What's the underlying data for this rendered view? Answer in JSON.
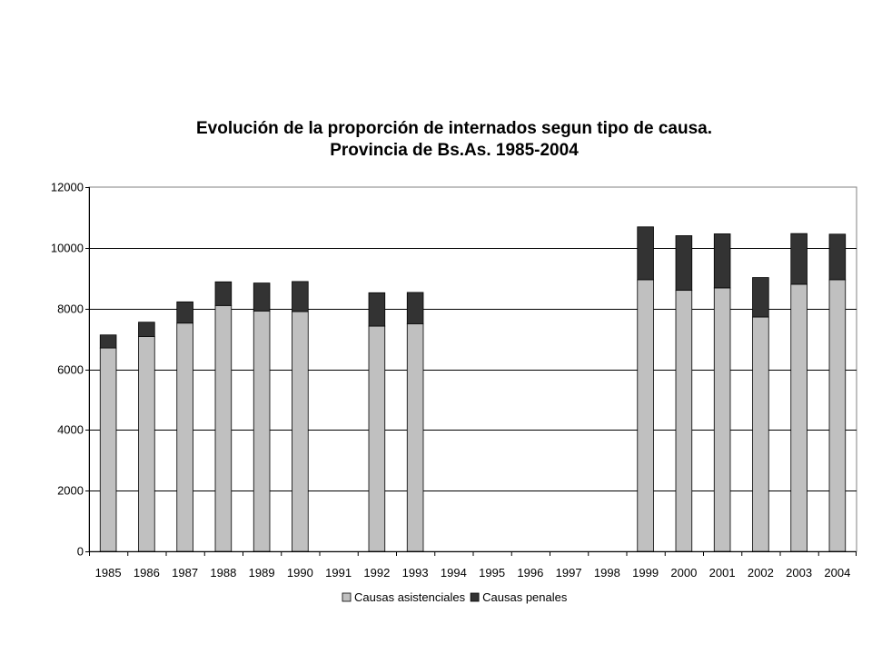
{
  "chart_data": {
    "type": "bar",
    "stacked": true,
    "title": "Evolución de la proporción de internados segun tipo de causa.",
    "subtitle": "Provincia de Bs.As. 1985-2004",
    "xlabel": "",
    "ylabel": "",
    "ylim": [
      0,
      12000
    ],
    "yticks": [
      0,
      2000,
      4000,
      6000,
      8000,
      10000,
      12000
    ],
    "grid": true,
    "legend_position": "bottom",
    "categories": [
      "1985",
      "1986",
      "1987",
      "1988",
      "1989",
      "1990",
      "1991",
      "1992",
      "1993",
      "1994",
      "1995",
      "1996",
      "1997",
      "1998",
      "1999",
      "2000",
      "2001",
      "2002",
      "2003",
      "2004"
    ],
    "series": [
      {
        "name": "Causas asistenciales",
        "color": "#c0c0c0",
        "values": [
          6700,
          7080,
          7520,
          8100,
          7920,
          7900,
          null,
          7420,
          7500,
          null,
          null,
          null,
          null,
          null,
          8950,
          8600,
          8680,
          7720,
          8800,
          8950
        ]
      },
      {
        "name": "Causas penales",
        "color": "#333333",
        "values": [
          430,
          470,
          700,
          780,
          920,
          990,
          null,
          1100,
          1030,
          null,
          null,
          null,
          null,
          null,
          1740,
          1800,
          1780,
          1300,
          1670,
          1500
        ]
      }
    ]
  }
}
